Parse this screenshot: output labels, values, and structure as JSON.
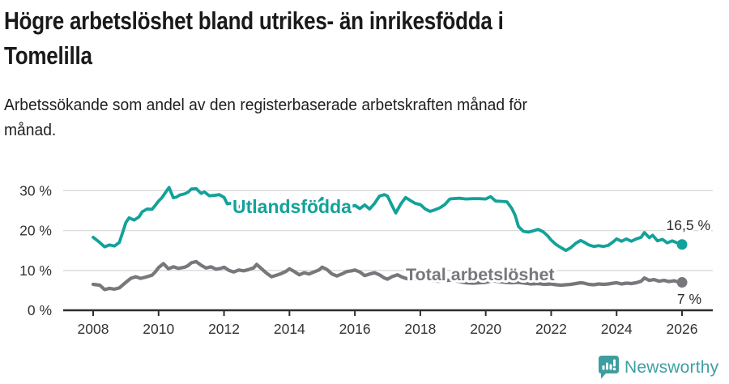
{
  "header": {
    "title_line1": "Högre arbetslöshet bland utrikes- än inrikesfödda i",
    "title_line2": "Tomelilla",
    "subtitle_line1": "Arbetssökande som andel av den registerbaserade arbetskraften månad för",
    "subtitle_line2": "månad."
  },
  "footer": {
    "brand": "Newsworthy"
  },
  "chart_data": {
    "type": "line",
    "title": "Högre arbetslöshet bland utrikes- än inrikesfödda i Tomelilla",
    "subtitle": "Arbetssökande som andel av den registerbaserade arbetskraften månad för månad.",
    "xlabel": "",
    "ylabel": "",
    "y_unit": "%",
    "xlim": [
      2007.1,
      2027.0
    ],
    "ylim": [
      0,
      33
    ],
    "grid": "horizontal",
    "legend_position": "inline-labels",
    "colors": {
      "grid": "#dadada",
      "axis": "#2e2e2e",
      "tick_text": "#333336",
      "background": "#ffffff"
    },
    "y_ticks": [
      {
        "value": 0,
        "label": "0 %"
      },
      {
        "value": 10,
        "label": "10 %"
      },
      {
        "value": 20,
        "label": "20 %"
      },
      {
        "value": 30,
        "label": "30 %"
      }
    ],
    "x_ticks": [
      {
        "value": 2008,
        "label": "2008"
      },
      {
        "value": 2010,
        "label": "2010"
      },
      {
        "value": 2012,
        "label": "2012"
      },
      {
        "value": 2014,
        "label": "2014"
      },
      {
        "value": 2016,
        "label": "2016"
      },
      {
        "value": 2018,
        "label": "2018"
      },
      {
        "value": 2020,
        "label": "2020"
      },
      {
        "value": 2022,
        "label": "2022"
      },
      {
        "value": 2024,
        "label": "2024"
      },
      {
        "value": 2026,
        "label": "2026"
      }
    ],
    "series": [
      {
        "name": "Utlandsfödda",
        "color": "#12a299",
        "width": 3.8,
        "end_label": "16,5 %",
        "end_value": 16.5,
        "points": [
          [
            2008.0,
            18.3
          ],
          [
            2008.2,
            17.0
          ],
          [
            2008.35,
            15.9
          ],
          [
            2008.5,
            16.4
          ],
          [
            2008.65,
            16.1
          ],
          [
            2008.8,
            17.0
          ],
          [
            2008.9,
            19.5
          ],
          [
            2009.0,
            22.0
          ],
          [
            2009.1,
            23.2
          ],
          [
            2009.25,
            22.6
          ],
          [
            2009.4,
            23.4
          ],
          [
            2009.5,
            24.7
          ],
          [
            2009.65,
            25.4
          ],
          [
            2009.8,
            25.3
          ],
          [
            2009.9,
            26.3
          ],
          [
            2010.0,
            27.4
          ],
          [
            2010.1,
            28.2
          ],
          [
            2010.25,
            30.0
          ],
          [
            2010.32,
            30.8
          ],
          [
            2010.45,
            28.2
          ],
          [
            2010.55,
            28.4
          ],
          [
            2010.65,
            28.9
          ],
          [
            2010.8,
            29.2
          ],
          [
            2010.9,
            29.6
          ],
          [
            2011.0,
            30.4
          ],
          [
            2011.15,
            30.5
          ],
          [
            2011.3,
            29.3
          ],
          [
            2011.4,
            29.7
          ],
          [
            2011.55,
            28.7
          ],
          [
            2011.7,
            28.8
          ],
          [
            2011.85,
            29.0
          ],
          [
            2012.0,
            28.3
          ],
          [
            2012.1,
            26.7
          ],
          [
            2012.25,
            26.9
          ],
          [
            2012.4,
            25.6
          ],
          [
            2012.55,
            26.4
          ],
          [
            2012.7,
            26.1
          ],
          [
            2012.85,
            26.8
          ],
          [
            2013.0,
            27.6
          ],
          [
            2013.15,
            25.1
          ],
          [
            2013.3,
            24.4
          ],
          [
            2013.45,
            25.4
          ],
          [
            2013.6,
            25.1
          ],
          [
            2013.75,
            25.4
          ],
          [
            2013.9,
            26.0
          ],
          [
            2014.0,
            26.7
          ],
          [
            2014.15,
            26.1
          ],
          [
            2014.3,
            25.3
          ],
          [
            2014.45,
            26.3
          ],
          [
            2014.6,
            25.7
          ],
          [
            2014.75,
            26.2
          ],
          [
            2014.9,
            27.1
          ],
          [
            2015.0,
            28.1
          ],
          [
            2015.15,
            27.3
          ],
          [
            2015.3,
            25.5
          ],
          [
            2015.45,
            26.1
          ],
          [
            2015.6,
            25.3
          ],
          [
            2015.75,
            25.6
          ],
          [
            2015.9,
            26.0
          ],
          [
            2016.0,
            26.3
          ],
          [
            2016.15,
            25.5
          ],
          [
            2016.3,
            26.4
          ],
          [
            2016.45,
            25.4
          ],
          [
            2016.6,
            26.8
          ],
          [
            2016.75,
            28.6
          ],
          [
            2016.9,
            29.0
          ],
          [
            2017.0,
            28.6
          ],
          [
            2017.15,
            26.0
          ],
          [
            2017.25,
            24.4
          ],
          [
            2017.4,
            26.6
          ],
          [
            2017.55,
            28.3
          ],
          [
            2017.7,
            27.5
          ],
          [
            2017.85,
            26.8
          ],
          [
            2018.0,
            26.5
          ],
          [
            2018.15,
            25.4
          ],
          [
            2018.3,
            24.8
          ],
          [
            2018.45,
            25.2
          ],
          [
            2018.6,
            25.7
          ],
          [
            2018.75,
            26.5
          ],
          [
            2018.9,
            27.9
          ],
          [
            2019.0,
            28.0
          ],
          [
            2019.2,
            28.1
          ],
          [
            2019.4,
            27.9
          ],
          [
            2019.6,
            28.0
          ],
          [
            2019.8,
            28.0
          ],
          [
            2020.0,
            27.9
          ],
          [
            2020.15,
            28.5
          ],
          [
            2020.3,
            27.4
          ],
          [
            2020.5,
            27.3
          ],
          [
            2020.65,
            27.2
          ],
          [
            2020.8,
            25.5
          ],
          [
            2020.9,
            23.8
          ],
          [
            2021.0,
            21.0
          ],
          [
            2021.15,
            19.8
          ],
          [
            2021.3,
            19.6
          ],
          [
            2021.45,
            19.9
          ],
          [
            2021.6,
            20.3
          ],
          [
            2021.75,
            19.7
          ],
          [
            2021.9,
            18.6
          ],
          [
            2022.0,
            17.6
          ],
          [
            2022.15,
            16.5
          ],
          [
            2022.3,
            15.7
          ],
          [
            2022.45,
            15.0
          ],
          [
            2022.6,
            15.7
          ],
          [
            2022.75,
            16.8
          ],
          [
            2022.9,
            17.5
          ],
          [
            2023.0,
            17.1
          ],
          [
            2023.15,
            16.4
          ],
          [
            2023.3,
            16.0
          ],
          [
            2023.45,
            16.2
          ],
          [
            2023.6,
            16.0
          ],
          [
            2023.75,
            16.3
          ],
          [
            2023.9,
            17.2
          ],
          [
            2024.0,
            17.9
          ],
          [
            2024.15,
            17.3
          ],
          [
            2024.3,
            17.9
          ],
          [
            2024.45,
            17.3
          ],
          [
            2024.6,
            17.9
          ],
          [
            2024.75,
            18.3
          ],
          [
            2024.85,
            19.5
          ],
          [
            2025.0,
            18.2
          ],
          [
            2025.1,
            18.8
          ],
          [
            2025.25,
            17.4
          ],
          [
            2025.4,
            17.8
          ],
          [
            2025.55,
            16.9
          ],
          [
            2025.7,
            17.4
          ],
          [
            2025.85,
            16.9
          ],
          [
            2026.0,
            16.5
          ]
        ]
      },
      {
        "name": "Total arbetslöshet",
        "color": "#77777c",
        "width": 4.2,
        "end_label": "7 %",
        "end_value": 7,
        "points": [
          [
            2008.0,
            6.5
          ],
          [
            2008.2,
            6.3
          ],
          [
            2008.35,
            5.2
          ],
          [
            2008.5,
            5.5
          ],
          [
            2008.65,
            5.3
          ],
          [
            2008.8,
            5.6
          ],
          [
            2009.0,
            7.0
          ],
          [
            2009.15,
            8.0
          ],
          [
            2009.3,
            8.4
          ],
          [
            2009.45,
            8.0
          ],
          [
            2009.6,
            8.3
          ],
          [
            2009.8,
            8.8
          ],
          [
            2009.9,
            9.6
          ],
          [
            2010.0,
            10.7
          ],
          [
            2010.15,
            11.7
          ],
          [
            2010.3,
            10.4
          ],
          [
            2010.45,
            10.9
          ],
          [
            2010.6,
            10.5
          ],
          [
            2010.8,
            10.8
          ],
          [
            2010.9,
            11.2
          ],
          [
            2011.0,
            11.9
          ],
          [
            2011.15,
            12.2
          ],
          [
            2011.3,
            11.3
          ],
          [
            2011.45,
            10.6
          ],
          [
            2011.6,
            10.9
          ],
          [
            2011.75,
            10.3
          ],
          [
            2011.9,
            10.5
          ],
          [
            2012.0,
            10.8
          ],
          [
            2012.15,
            10.0
          ],
          [
            2012.3,
            9.6
          ],
          [
            2012.45,
            10.1
          ],
          [
            2012.6,
            9.9
          ],
          [
            2012.75,
            10.2
          ],
          [
            2012.9,
            10.6
          ],
          [
            2013.0,
            11.5
          ],
          [
            2013.15,
            10.4
          ],
          [
            2013.3,
            9.3
          ],
          [
            2013.45,
            8.4
          ],
          [
            2013.6,
            8.8
          ],
          [
            2013.75,
            9.2
          ],
          [
            2013.9,
            9.8
          ],
          [
            2014.0,
            10.4
          ],
          [
            2014.15,
            9.7
          ],
          [
            2014.3,
            8.9
          ],
          [
            2014.45,
            9.4
          ],
          [
            2014.6,
            9.1
          ],
          [
            2014.75,
            9.6
          ],
          [
            2014.9,
            10.1
          ],
          [
            2015.0,
            10.8
          ],
          [
            2015.15,
            10.2
          ],
          [
            2015.3,
            9.1
          ],
          [
            2015.45,
            8.6
          ],
          [
            2015.6,
            9.1
          ],
          [
            2015.75,
            9.7
          ],
          [
            2015.9,
            9.9
          ],
          [
            2016.0,
            10.1
          ],
          [
            2016.15,
            9.6
          ],
          [
            2016.3,
            8.7
          ],
          [
            2016.45,
            9.1
          ],
          [
            2016.6,
            9.4
          ],
          [
            2016.75,
            8.9
          ],
          [
            2016.9,
            8.1
          ],
          [
            2017.0,
            7.8
          ],
          [
            2017.15,
            8.5
          ],
          [
            2017.3,
            8.9
          ],
          [
            2017.45,
            8.3
          ],
          [
            2017.6,
            7.9
          ],
          [
            2017.75,
            7.7
          ],
          [
            2017.9,
            7.9
          ],
          [
            2018.0,
            8.2
          ],
          [
            2018.2,
            7.8
          ],
          [
            2018.4,
            7.4
          ],
          [
            2018.6,
            7.3
          ],
          [
            2018.8,
            7.5
          ],
          [
            2019.0,
            7.6
          ],
          [
            2019.2,
            7.2
          ],
          [
            2019.4,
            6.9
          ],
          [
            2019.6,
            6.8
          ],
          [
            2019.8,
            6.9
          ],
          [
            2020.0,
            7.0
          ],
          [
            2020.2,
            7.4
          ],
          [
            2020.4,
            7.2
          ],
          [
            2020.6,
            7.0
          ],
          [
            2020.8,
            6.9
          ],
          [
            2021.0,
            7.0
          ],
          [
            2021.2,
            6.8
          ],
          [
            2021.4,
            6.6
          ],
          [
            2021.6,
            6.7
          ],
          [
            2021.8,
            6.5
          ],
          [
            2022.0,
            6.6
          ],
          [
            2022.15,
            6.4
          ],
          [
            2022.3,
            6.3
          ],
          [
            2022.45,
            6.4
          ],
          [
            2022.6,
            6.5
          ],
          [
            2022.75,
            6.7
          ],
          [
            2022.9,
            6.9
          ],
          [
            2023.0,
            6.8
          ],
          [
            2023.15,
            6.5
          ],
          [
            2023.3,
            6.4
          ],
          [
            2023.45,
            6.6
          ],
          [
            2023.6,
            6.5
          ],
          [
            2023.75,
            6.6
          ],
          [
            2023.9,
            6.8
          ],
          [
            2024.0,
            6.9
          ],
          [
            2024.15,
            6.6
          ],
          [
            2024.3,
            6.8
          ],
          [
            2024.45,
            6.7
          ],
          [
            2024.6,
            6.9
          ],
          [
            2024.75,
            7.3
          ],
          [
            2024.85,
            8.1
          ],
          [
            2025.0,
            7.5
          ],
          [
            2025.15,
            7.7
          ],
          [
            2025.3,
            7.3
          ],
          [
            2025.45,
            7.5
          ],
          [
            2025.6,
            7.2
          ],
          [
            2025.75,
            7.4
          ],
          [
            2025.9,
            7.1
          ],
          [
            2026.0,
            7.0
          ]
        ]
      }
    ]
  }
}
